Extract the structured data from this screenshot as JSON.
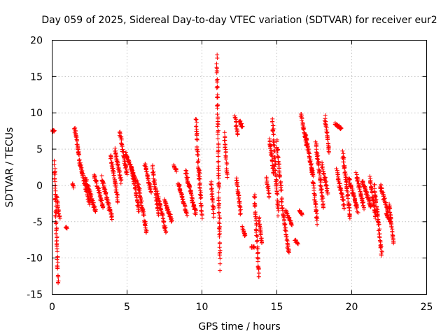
{
  "chart_data": {
    "type": "scatter",
    "title": "Day 059 of 2025, Sidereal Day-to-day VTEC variation (SDTVAR) for receiver eur2",
    "xlabel": "GPS time / hours",
    "ylabel": "SDTVAR / TECUs",
    "xlim": [
      0,
      25
    ],
    "ylim": [
      -15,
      20
    ],
    "x_ticks": [
      0,
      5,
      10,
      15,
      20,
      25
    ],
    "x_tick_labels": [
      "0",
      "5",
      "10",
      "15",
      "20",
      "25"
    ],
    "y_ticks": [
      -15,
      -10,
      -5,
      0,
      5,
      10,
      15,
      20
    ],
    "y_tick_labels": [
      "-15",
      "-10",
      "-5",
      "0",
      "5",
      "10",
      "15",
      "20"
    ],
    "grid": true,
    "marker": "+",
    "color": "#ff0000",
    "series": [
      {
        "name": "eur2",
        "segments": [
          [
            0.0,
            0.15,
            7.5,
            7.5
          ],
          [
            0.15,
            0.4,
            3.0,
            -13.5
          ],
          [
            0.3,
            0.5,
            -1.5,
            -4.5
          ],
          [
            0.9,
            1.0,
            -5.8,
            -5.8
          ],
          [
            1.35,
            1.45,
            0.2,
            -0.2
          ],
          [
            1.5,
            1.8,
            8.0,
            4.0
          ],
          [
            1.8,
            2.5,
            3.5,
            -2.5
          ],
          [
            2.2,
            2.9,
            1.0,
            -3.5
          ],
          [
            2.8,
            3.4,
            1.5,
            -3.0
          ],
          [
            3.3,
            4.0,
            1.0,
            -4.5
          ],
          [
            3.9,
            4.4,
            4.0,
            -2.0
          ],
          [
            4.2,
            4.6,
            5.0,
            0.5
          ],
          [
            4.5,
            5.0,
            7.5,
            1.5
          ],
          [
            4.9,
            5.6,
            4.5,
            0.5
          ],
          [
            5.3,
            5.8,
            2.5,
            -3.5
          ],
          [
            5.7,
            6.3,
            0.5,
            -6.5
          ],
          [
            6.2,
            6.6,
            3.0,
            -1.0
          ],
          [
            6.7,
            7.1,
            2.5,
            -4.0
          ],
          [
            7.0,
            7.6,
            -1.0,
            -6.5
          ],
          [
            7.5,
            8.0,
            -2.0,
            -5.0
          ],
          [
            8.1,
            8.3,
            2.8,
            2.0
          ],
          [
            8.4,
            9.0,
            0.5,
            -4.0
          ],
          [
            8.9,
            9.6,
            2.0,
            -4.0
          ],
          [
            9.6,
            9.8,
            9.2,
            1.0
          ],
          [
            9.8,
            10.0,
            2.5,
            -4.5
          ],
          [
            10.6,
            10.8,
            0.5,
            -4.2
          ],
          [
            11.0,
            11.2,
            17.0,
            -11.0
          ],
          [
            11.5,
            11.7,
            7.0,
            1.0
          ],
          [
            12.2,
            12.4,
            9.5,
            7.0
          ],
          [
            12.3,
            12.6,
            1.0,
            -4.0
          ],
          [
            12.5,
            12.7,
            9.0,
            8.0
          ],
          [
            12.7,
            12.9,
            -5.8,
            -7.0
          ],
          [
            13.3,
            13.5,
            -8.5,
            -8.5
          ],
          [
            13.5,
            13.8,
            -1.0,
            -12.5
          ],
          [
            13.8,
            14.0,
            -4.5,
            -8.0
          ],
          [
            14.3,
            14.5,
            1.0,
            -1.5
          ],
          [
            14.5,
            14.8,
            6.5,
            1.5
          ],
          [
            14.7,
            15.1,
            9.0,
            -4.0
          ],
          [
            15.0,
            15.3,
            6.0,
            -1.0
          ],
          [
            15.3,
            15.8,
            -2.0,
            -9.5
          ],
          [
            15.6,
            16.0,
            -3.5,
            -5.5
          ],
          [
            16.2,
            16.4,
            -7.5,
            -8.0
          ],
          [
            16.5,
            16.7,
            -3.5,
            -4.0
          ],
          [
            16.6,
            17.0,
            10.0,
            5.5
          ],
          [
            16.9,
            17.4,
            7.0,
            1.5
          ],
          [
            17.3,
            17.7,
            3.0,
            -5.0
          ],
          [
            17.6,
            18.1,
            6.0,
            -3.0
          ],
          [
            18.0,
            18.4,
            3.0,
            -1.0
          ],
          [
            18.2,
            18.5,
            9.5,
            4.5
          ],
          [
            18.9,
            19.3,
            8.5,
            7.8
          ],
          [
            19.0,
            19.5,
            2.0,
            -3.0
          ],
          [
            19.4,
            19.9,
            4.5,
            -4.5
          ],
          [
            19.8,
            20.4,
            1.0,
            -3.5
          ],
          [
            20.3,
            20.8,
            1.5,
            -3.0
          ],
          [
            20.7,
            21.3,
            0.5,
            -3.0
          ],
          [
            21.2,
            21.6,
            1.0,
            -4.5
          ],
          [
            21.5,
            22.0,
            0.0,
            -9.5
          ],
          [
            21.9,
            22.4,
            0.0,
            -3.5
          ],
          [
            22.3,
            22.6,
            -4.0,
            -5.0
          ],
          [
            22.5,
            22.8,
            -2.5,
            -8.0
          ]
        ]
      }
    ]
  }
}
